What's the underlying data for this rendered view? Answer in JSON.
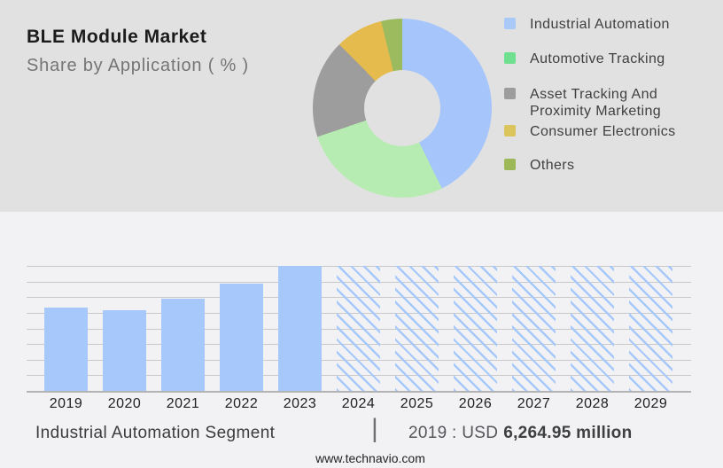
{
  "header": {
    "title": "BLE Module Market",
    "subtitle": "Share by Application ( % )"
  },
  "colors": {
    "top_background": "#e1e1e1",
    "bottom_background": "#f2f2f4",
    "bar_blue": "#a6c8fa",
    "gridline": "#c9c9c9",
    "axis_line": "#b3b3b3"
  },
  "legend": {
    "items": [
      {
        "key": "industrial-automation",
        "label": "Industrial Automation",
        "color": "#a9c9f9"
      },
      {
        "key": "automotive-tracking",
        "label": "Automotive Tracking",
        "color": "#6ee08f"
      },
      {
        "key": "asset-tracking-and-proximity-marketing",
        "label": "Asset Tracking And Proximity Marketing",
        "color": "#9d9d9d"
      },
      {
        "key": "consumer-electronics",
        "label": "Consumer Electronics",
        "color": "#dcc45c"
      },
      {
        "key": "others",
        "label": "Others",
        "color": "#9cb857"
      }
    ]
  },
  "chart_data": [
    {
      "type": "pie",
      "variant": "donut",
      "title": "BLE Module Market — Share by Application ( % )",
      "legend_position": "right",
      "segments": [
        {
          "label": "Industrial Automation",
          "value": 42.7,
          "color": "#a6c6fb"
        },
        {
          "label": "Automotive Tracking",
          "value": 27.1,
          "color": "#b6ecb1"
        },
        {
          "label": "Asset Tracking And Proximity Marketing",
          "value": 17.8,
          "color": "#9d9d9d"
        },
        {
          "label": "Consumer Electronics",
          "value": 8.6,
          "color": "#e6bb4e"
        },
        {
          "label": "Others",
          "value": 3.8,
          "color": "#9cba5e"
        }
      ],
      "note": "No numeric labels shown; slice percentages estimated from arc angles."
    },
    {
      "type": "bar",
      "categories": [
        "2019",
        "2020",
        "2021",
        "2022",
        "2023",
        "2024",
        "2025",
        "2026",
        "2027",
        "2028",
        "2029"
      ],
      "values_relative": [
        66.7,
        64.5,
        73.8,
        85.8,
        100,
        100,
        100,
        100,
        100,
        100,
        100
      ],
      "hatched_forecast": [
        false,
        false,
        false,
        false,
        false,
        true,
        true,
        true,
        true,
        true,
        true
      ],
      "xlabel": "",
      "ylabel": "",
      "gridline_count": 9,
      "legend_position": "none",
      "note": "Y axis unlabeled; bar heights relative to 2023 = 100. 2024-2029 drawn as full-height diagonal-hatched forecast bars.",
      "annotation": "2019 : USD 6,264.95 million"
    }
  ],
  "caption": {
    "segment_label": "Industrial Automation Segment",
    "separator": "|",
    "value_prefix": "2019 : USD",
    "value_bold": "6,264.95 million"
  },
  "footer": {
    "url": "www.technavio.com"
  }
}
